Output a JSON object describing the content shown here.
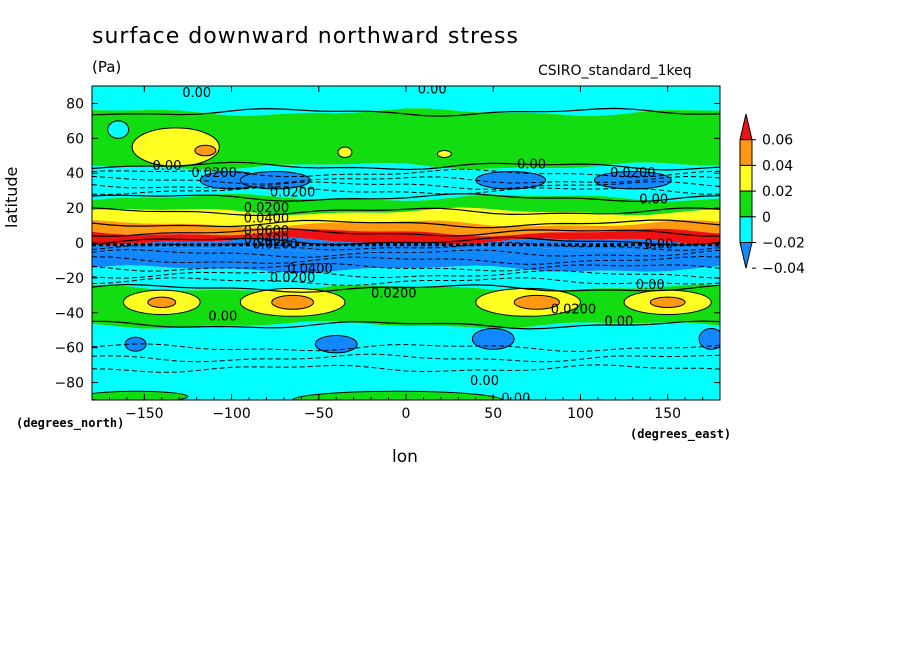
{
  "header": {
    "title": "surface downward northward stress",
    "units": "(Pa)",
    "model": "CSIRO_standard_1keq"
  },
  "chart_data": {
    "type": "heatmap",
    "title": "surface downward northward stress",
    "xlabel": "lon",
    "ylabel": "latitude",
    "x_units": "(degrees_east)",
    "y_units": "(degrees_north)",
    "xlim": [
      -180,
      180
    ],
    "ylim": [
      -90,
      90
    ],
    "xticks": [
      -150,
      -100,
      -50,
      0,
      50,
      100,
      150
    ],
    "yticks": [
      80,
      60,
      40,
      20,
      0,
      -20,
      -40,
      -60,
      -80
    ],
    "colorbar": {
      "levels": [
        "0.06",
        "0.04",
        "0.02",
        "0",
        "−0.02",
        "−0.04"
      ],
      "colors": [
        "#ee1111",
        "#ff9911",
        "#ffff22",
        "#11dd11",
        "#00ffff",
        "#1188ff"
      ]
    },
    "bands": [
      {
        "lat_top": 90,
        "lat_bottom": 75,
        "value": -0.01,
        "color": "#00ffff"
      },
      {
        "lat_top": 75,
        "lat_bottom": 44,
        "value": 0.01,
        "color": "#11dd11"
      },
      {
        "lat_top": 44,
        "lat_bottom": 31,
        "value": -0.02,
        "color": "#00ffff"
      },
      {
        "lat_top": 31,
        "lat_bottom": 26,
        "value": -0.01,
        "color": "#00ffff"
      },
      {
        "lat_top": 26,
        "lat_bottom": 18,
        "value": 0.01,
        "color": "#11dd11"
      },
      {
        "lat_top": 18,
        "lat_bottom": 11,
        "value": 0.03,
        "color": "#ffff22"
      },
      {
        "lat_top": 11,
        "lat_bottom": 6,
        "value": 0.05,
        "color": "#ff9911"
      },
      {
        "lat_top": 6,
        "lat_bottom": 1,
        "value": 0.07,
        "color": "#ee1111"
      },
      {
        "lat_top": 1,
        "lat_bottom": -4,
        "value": -0.05,
        "color": "#1188ff"
      },
      {
        "lat_top": -4,
        "lat_bottom": -15,
        "value": -0.05,
        "color": "#1188ff"
      },
      {
        "lat_top": -15,
        "lat_bottom": -26,
        "value": -0.01,
        "color": "#00ffff"
      },
      {
        "lat_top": -26,
        "lat_bottom": -47,
        "value": 0.01,
        "color": "#11dd11"
      },
      {
        "lat_top": -47,
        "lat_bottom": -90,
        "value": -0.01,
        "color": "#00ffff"
      }
    ],
    "blobs": [
      {
        "lon": -132,
        "lat": 55,
        "rlon": 25,
        "rlat": 11,
        "color": "#ffff22"
      },
      {
        "lon": -115,
        "lat": 53,
        "rlon": 6,
        "rlat": 3,
        "color": "#ff9911"
      },
      {
        "lon": -165,
        "lat": 65,
        "rlon": 6,
        "rlat": 5,
        "color": "#00ffff"
      },
      {
        "lon": -100,
        "lat": 36,
        "rlon": 18,
        "rlat": 5,
        "color": "#1188ff"
      },
      {
        "lon": -75,
        "lat": 36,
        "rlon": 20,
        "rlat": 5,
        "color": "#1188ff"
      },
      {
        "lon": 60,
        "lat": 36,
        "rlon": 20,
        "rlat": 5,
        "color": "#1188ff"
      },
      {
        "lon": 130,
        "lat": 36,
        "rlon": 22,
        "rlat": 5,
        "color": "#1188ff"
      },
      {
        "lon": -140,
        "lat": -34,
        "rlon": 22,
        "rlat": 7,
        "color": "#ffff22"
      },
      {
        "lon": -140,
        "lat": -34,
        "rlon": 8,
        "rlat": 3,
        "color": "#ff9911"
      },
      {
        "lon": -65,
        "lat": -34,
        "rlon": 30,
        "rlat": 8,
        "color": "#ffff22"
      },
      {
        "lon": -65,
        "lat": -34,
        "rlon": 12,
        "rlat": 4,
        "color": "#ff9911"
      },
      {
        "lon": 70,
        "lat": -34,
        "rlon": 30,
        "rlat": 8,
        "color": "#ffff22"
      },
      {
        "lon": 75,
        "lat": -34,
        "rlon": 13,
        "rlat": 4,
        "color": "#ff9911"
      },
      {
        "lon": 150,
        "lat": -34,
        "rlon": 25,
        "rlat": 7,
        "color": "#ffff22"
      },
      {
        "lon": 150,
        "lat": -34,
        "rlon": 10,
        "rlat": 3,
        "color": "#ff9911"
      },
      {
        "lon": -155,
        "lat": -58,
        "rlon": 6,
        "rlat": 4,
        "color": "#1188ff"
      },
      {
        "lon": -40,
        "lat": -58,
        "rlon": 12,
        "rlat": 5,
        "color": "#1188ff"
      },
      {
        "lon": 50,
        "lat": -55,
        "rlon": 12,
        "rlat": 6,
        "color": "#1188ff"
      },
      {
        "lon": 175,
        "lat": -55,
        "rlon": 7,
        "rlat": 6,
        "color": "#1188ff"
      },
      {
        "lon": -155,
        "lat": -88,
        "rlon": 30,
        "rlat": 3,
        "color": "#11dd11"
      },
      {
        "lon": -5,
        "lat": -90,
        "rlon": 60,
        "rlat": 5,
        "color": "#11dd11"
      },
      {
        "lon": 22,
        "lat": 51,
        "rlon": 4,
        "rlat": 2,
        "color": "#ffff22"
      },
      {
        "lon": -35,
        "lat": 52,
        "rlon": 4,
        "rlat": 3,
        "color": "#ffff22"
      }
    ],
    "contours_solid_lat": [
      75,
      44,
      26,
      18,
      11,
      6,
      1,
      -26,
      -47
    ],
    "contours_dashed_lat": [
      40,
      36,
      33,
      30,
      -2,
      -6,
      -10,
      -14,
      -18,
      -22,
      -60,
      -66,
      -72
    ],
    "contour_labels": [
      {
        "text": "0.00",
        "lon": -120,
        "lat": 86
      },
      {
        "text": "0.00",
        "lon": 15,
        "lat": 88
      },
      {
        "text": "0.00",
        "lon": -137,
        "lat": 44
      },
      {
        "text": "0.0200",
        "lon": -110,
        "lat": 40
      },
      {
        "text": "0.00",
        "lon": 72,
        "lat": 45
      },
      {
        "text": "0.0200",
        "lon": 130,
        "lat": 40
      },
      {
        "text": "0.00",
        "lon": 142,
        "lat": 25
      },
      {
        "text": "0.0200",
        "lon": -65,
        "lat": 29
      },
      {
        "text": "0.0200",
        "lon": -80,
        "lat": 20
      },
      {
        "text": "0.0400",
        "lon": -80,
        "lat": 14
      },
      {
        "text": "0.0600",
        "lon": -80,
        "lat": 7
      },
      {
        "text": "0.0400",
        "lon": -80,
        "lat": 2
      },
      {
        "text": "0.0200",
        "lon": -75,
        "lat": -1
      },
      {
        "text": "0.00",
        "lon": 145,
        "lat": -1
      },
      {
        "text": "0.0400",
        "lon": -55,
        "lat": -15
      },
      {
        "text": "0.0200",
        "lon": -65,
        "lat": -20
      },
      {
        "text": "0.00",
        "lon": 140,
        "lat": -24
      },
      {
        "text": "0.0200",
        "lon": -7,
        "lat": -29
      },
      {
        "text": "0.0200",
        "lon": 96,
        "lat": -38
      },
      {
        "text": "0.00",
        "lon": -105,
        "lat": -42
      },
      {
        "text": "0.00",
        "lon": 122,
        "lat": -45
      },
      {
        "text": "0.00",
        "lon": 45,
        "lat": -79
      },
      {
        "text": "0.00",
        "lon": 63,
        "lat": -89
      }
    ]
  }
}
